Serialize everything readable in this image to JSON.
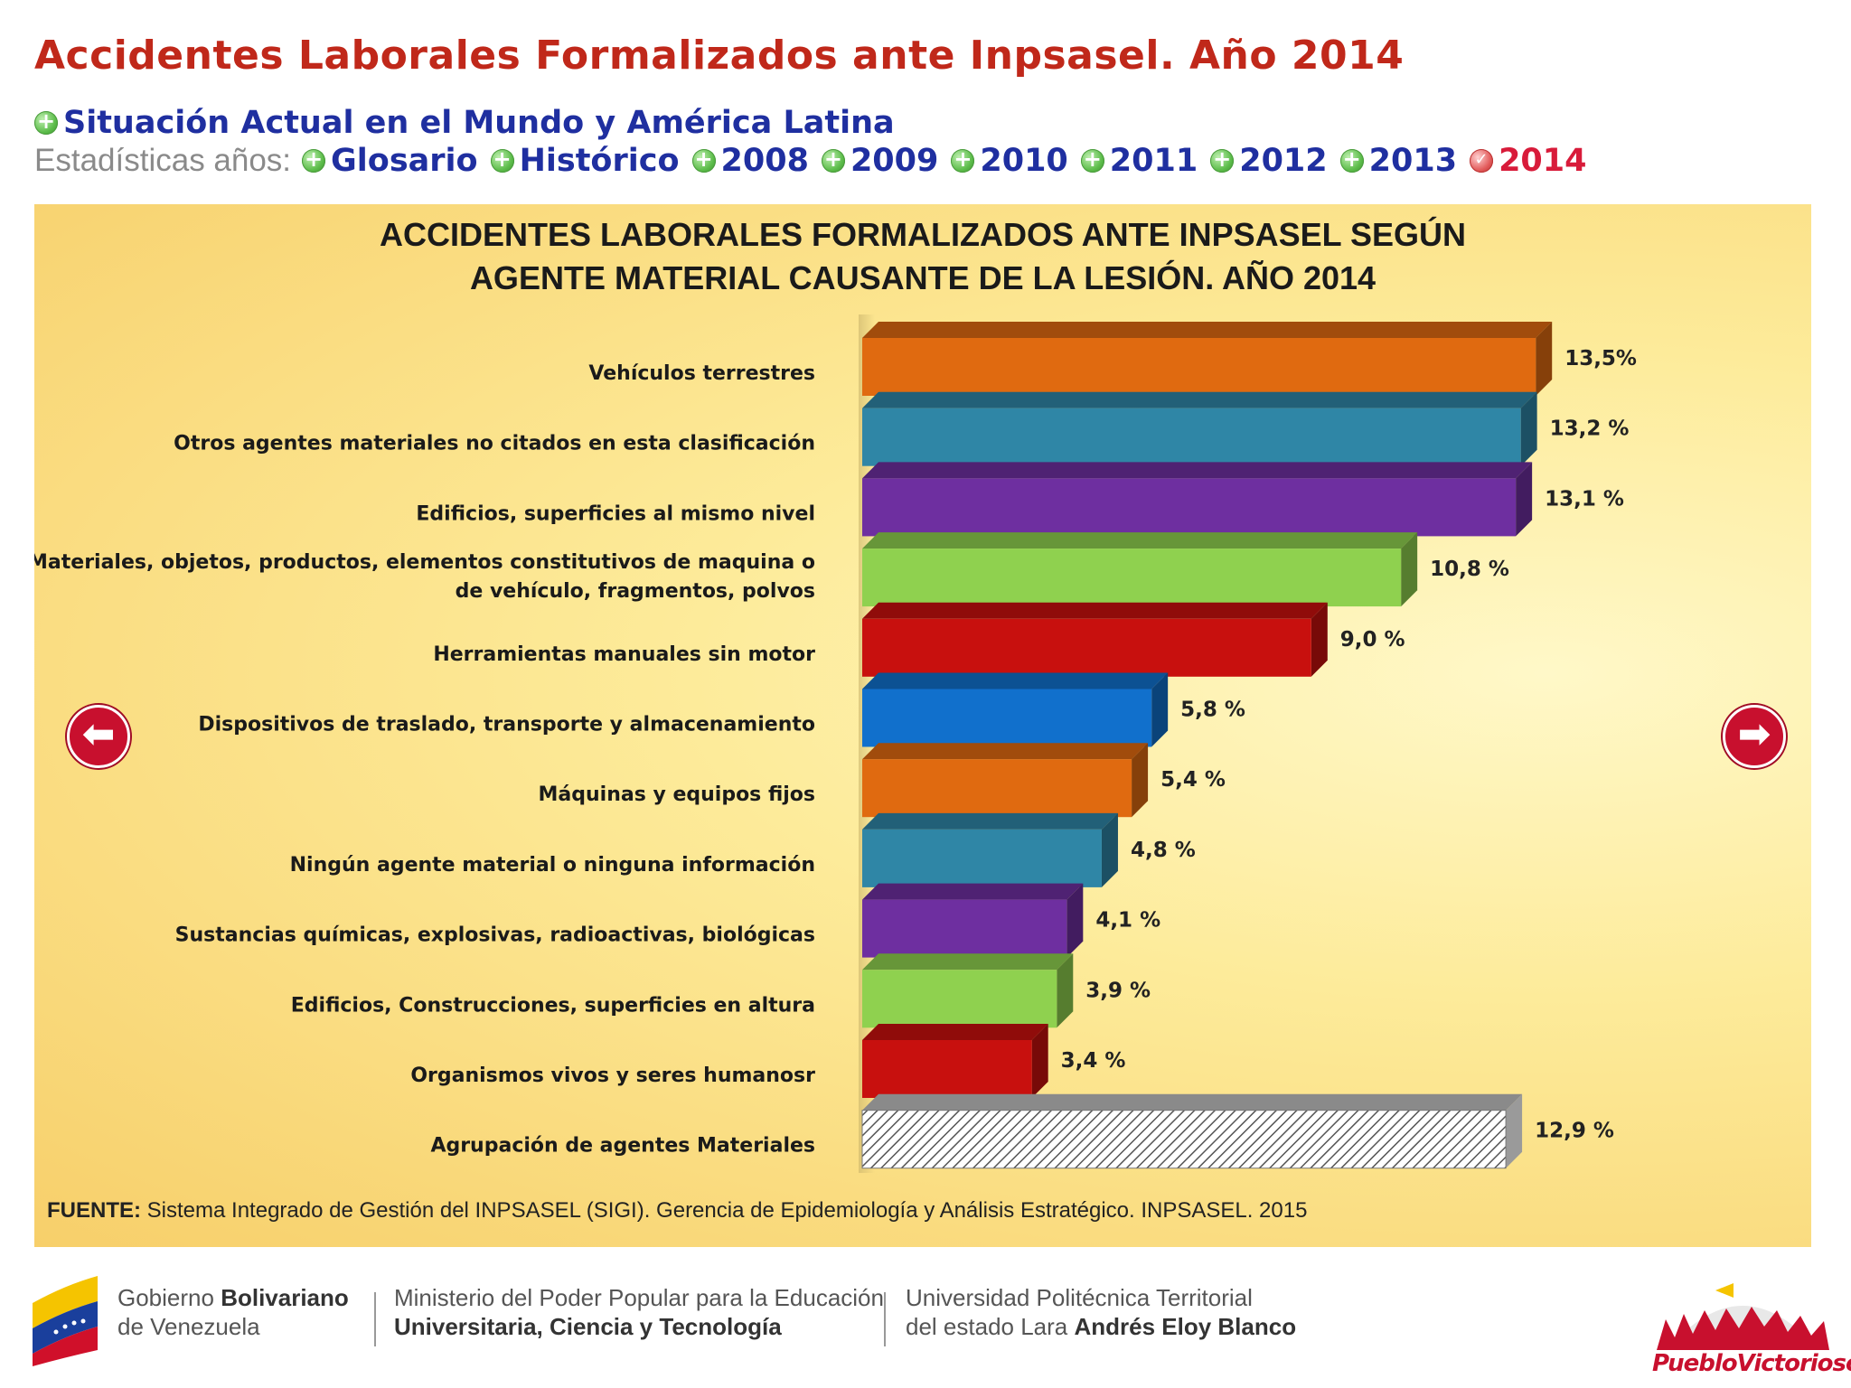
{
  "page": {
    "title": "Accidentes Laborales Formalizados ante Inpsasel. Año 2014",
    "nav_main_link": "Situación Actual en el Mundo y América Latina",
    "nav_prefix": "Estadísticas años:",
    "nav_links": [
      {
        "label": "Glosario",
        "current": false
      },
      {
        "label": "Histórico",
        "current": false
      },
      {
        "label": "2008",
        "current": false
      },
      {
        "label": "2009",
        "current": false
      },
      {
        "label": "2010",
        "current": false
      },
      {
        "label": "2011",
        "current": false
      },
      {
        "label": "2012",
        "current": false
      },
      {
        "label": "2013",
        "current": false
      },
      {
        "label": "2014",
        "current": true
      }
    ],
    "source_label": "FUENTE:",
    "source_text": "Sistema Integrado de Gestión del INPSASEL (SIGI). Gerencia de Epidemiología y Análisis Estratégico. INPSASEL. 2015"
  },
  "chart_data": {
    "type": "bar",
    "orientation": "horizontal",
    "title_line1": "ACCIDENTES LABORALES FORMALIZADOS ANTE INPSASEL SEGÚN",
    "title_line2": "AGENTE MATERIAL CAUSANTE DE LA LESIÓN. AÑO 2014",
    "unit": "%",
    "categories": [
      [
        "Vehículos terrestres"
      ],
      [
        "Otros agentes materiales no citados en esta clasificación"
      ],
      [
        "Edificios, superficies al mismo nivel"
      ],
      [
        "Materiales, objetos, productos, elementos constitutivos de maquina o",
        "de vehículo, fragmentos, polvos"
      ],
      [
        "Herramientas manuales sin motor"
      ],
      [
        "Dispositivos de traslado, transporte y almacenamiento"
      ],
      [
        "Máquinas y equipos fijos"
      ],
      [
        "Ningún agente material o ninguna información"
      ],
      [
        "Sustancias químicas, explosivas, radioactivas, biológicas"
      ],
      [
        "Edificios, Construcciones, superficies en altura"
      ],
      [
        "Organismos vivos y seres humanosr"
      ],
      [
        "Agrupación de agentes Materiales"
      ]
    ],
    "values": [
      13.5,
      13.2,
      13.1,
      10.8,
      9.0,
      5.8,
      5.4,
      4.8,
      4.1,
      3.9,
      3.4,
      12.9
    ],
    "value_labels": [
      "13,5%",
      "13,2 %",
      "13,1 %",
      "10,8 %",
      "9,0 %",
      "5,8 %",
      "5,4 %",
      "4,8 %",
      "4,1 %",
      "3,9 %",
      "3,4 %",
      "12,9 %"
    ],
    "colors": [
      "#e06a10",
      "#2f86a6",
      "#6e2fa0",
      "#8fd14f",
      "#c8100e",
      "#1170cc",
      "#e06a10",
      "#2f86a6",
      "#6e2fa0",
      "#8fd14f",
      "#c8100e",
      "hatched"
    ],
    "xlim": [
      0,
      14
    ],
    "grid": false,
    "legend": "none"
  },
  "footer": {
    "gov_line1_a": "Gobierno ",
    "gov_line1_b": "Bolivariano",
    "gov_line2": "de Venezuela",
    "min_line1": "Ministerio del Poder Popular para la Educación",
    "min_line2": "Universitaria, Ciencia y Tecnología",
    "uni_line1": "Universidad Politécnica Territorial",
    "uni_line2_a": "del estado Lara ",
    "uni_line2_b": "Andrés Eloy Blanco",
    "logo_text": "PuebloVictorioso"
  },
  "colors": {
    "title": "#c0281a",
    "nav_link": "#1f2fa0",
    "nav_current": "#d81b3a",
    "arrow": "#c8102e"
  },
  "icons": {
    "nav_dot": "plus-circle-icon",
    "nav_current_dot": "check-circle-icon",
    "prev": "arrow-left-icon",
    "next": "arrow-right-icon"
  }
}
